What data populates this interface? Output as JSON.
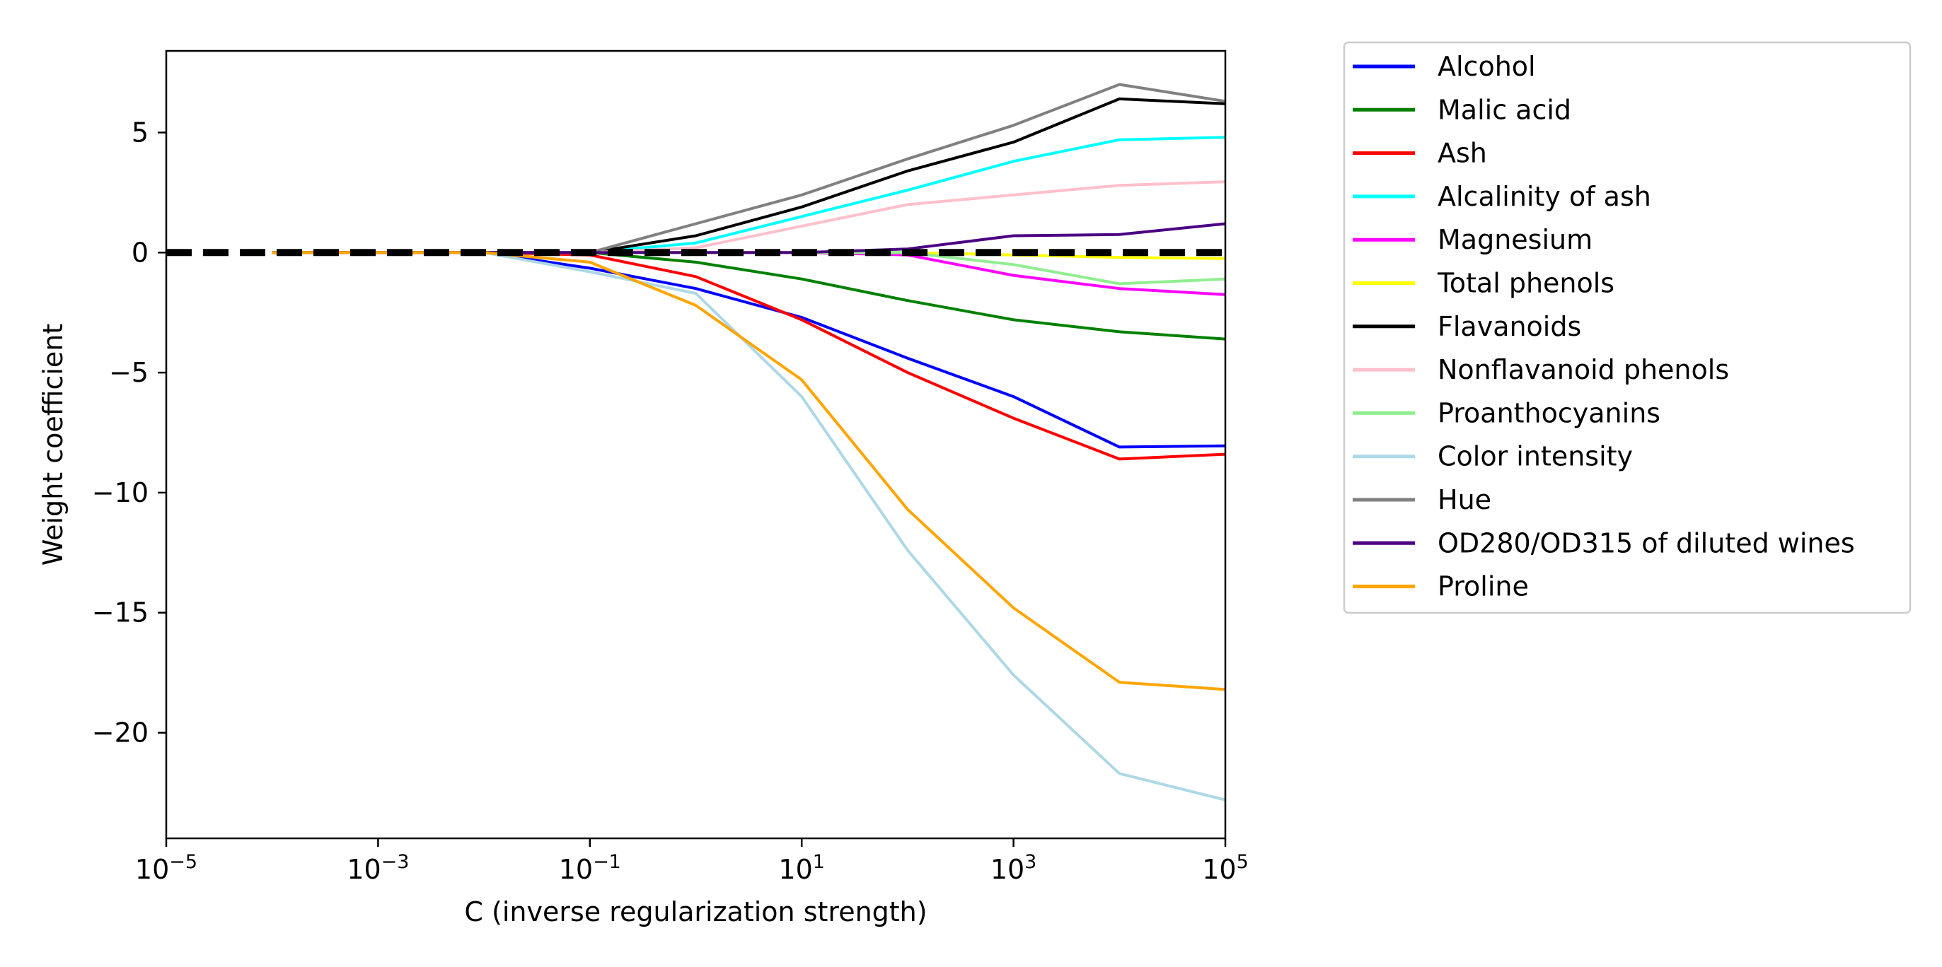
{
  "chart_data": {
    "type": "line",
    "xlabel": "C (inverse regularization strength)",
    "ylabel": "Weight coefficient",
    "xscale": "log",
    "xlim": [
      1e-05,
      100000
    ],
    "ylim": [
      -24.4,
      8.4
    ],
    "x": [
      0.0001,
      0.001,
      0.01,
      0.1,
      1,
      10,
      100,
      1000,
      10000,
      100000
    ],
    "x_tick_labels": [
      {
        "value": 1e-05,
        "base": "10",
        "exp": "−5"
      },
      {
        "value": 0.001,
        "base": "10",
        "exp": "−3"
      },
      {
        "value": 0.1,
        "base": "10",
        "exp": "−1"
      },
      {
        "value": 10,
        "base": "10",
        "exp": "1"
      },
      {
        "value": 1000,
        "base": "10",
        "exp": "3"
      },
      {
        "value": 100000,
        "base": "10",
        "exp": "5"
      }
    ],
    "y_ticks": [
      {
        "value": 5,
        "label": "5"
      },
      {
        "value": 0,
        "label": "0"
      },
      {
        "value": -5,
        "label": "−5"
      },
      {
        "value": -10,
        "label": "−10"
      },
      {
        "value": -15,
        "label": "−15"
      },
      {
        "value": -20,
        "label": "−20"
      }
    ],
    "baseline": {
      "y": 0,
      "style": "dashed",
      "color": "#000000"
    },
    "legend_position": "outside-right",
    "grid": false,
    "series": [
      {
        "name": "Alcohol",
        "color": "#0000ff",
        "values": [
          0,
          0,
          0,
          -0.65,
          -1.5,
          -2.7,
          -4.4,
          -6.0,
          -8.1,
          -8.05
        ]
      },
      {
        "name": "Malic acid",
        "color": "#008000",
        "values": [
          0,
          0,
          0,
          0,
          -0.4,
          -1.1,
          -2.0,
          -2.8,
          -3.3,
          -3.6
        ]
      },
      {
        "name": "Ash",
        "color": "#ff0000",
        "values": [
          0,
          0,
          0,
          -0.1,
          -1.0,
          -2.8,
          -5.0,
          -6.9,
          -8.6,
          -8.4
        ]
      },
      {
        "name": "Alcalinity of ash",
        "color": "#00ffff",
        "values": [
          0,
          0,
          0,
          0,
          0.4,
          1.5,
          2.6,
          3.8,
          4.7,
          4.8
        ]
      },
      {
        "name": "Magnesium",
        "color": "#ff00ff",
        "values": [
          0,
          0,
          0,
          0,
          0,
          0,
          -0.1,
          -0.95,
          -1.5,
          -1.75
        ]
      },
      {
        "name": "Total phenols",
        "color": "#ffff00",
        "values": [
          0,
          0,
          0,
          0,
          0,
          0,
          0,
          -0.1,
          -0.2,
          -0.25
        ]
      },
      {
        "name": "Flavanoids",
        "color": "#000000",
        "values": [
          0,
          0,
          0,
          0,
          0.7,
          1.9,
          3.4,
          4.6,
          6.4,
          6.2
        ]
      },
      {
        "name": "Nonflavanoid phenols",
        "color": "#ffc0cb",
        "values": [
          0,
          0,
          0,
          0,
          0.2,
          1.1,
          2.0,
          2.4,
          2.8,
          2.95
        ]
      },
      {
        "name": "Proanthocyanins",
        "color": "#90ee90",
        "values": [
          0,
          0,
          0,
          0,
          0,
          0,
          0,
          -0.5,
          -1.3,
          -1.1
        ]
      },
      {
        "name": "Color intensity",
        "color": "#add8e6",
        "values": [
          0,
          0,
          0,
          -0.8,
          -1.7,
          -6.0,
          -12.4,
          -17.6,
          -21.7,
          -22.8
        ]
      },
      {
        "name": "Hue",
        "color": "#808080",
        "values": [
          0,
          0,
          0,
          0,
          1.2,
          2.4,
          3.9,
          5.3,
          7.0,
          6.3
        ]
      },
      {
        "name": "OD280/OD315 of diluted wines",
        "color": "#4b0082",
        "values": [
          0,
          0,
          0,
          0,
          0,
          0,
          0.15,
          0.7,
          0.75,
          1.2
        ]
      },
      {
        "name": "Proline",
        "color": "#ffa500",
        "values": [
          0,
          0,
          0,
          -0.4,
          -2.2,
          -5.3,
          -10.7,
          -14.8,
          -17.9,
          -18.2
        ]
      }
    ]
  }
}
